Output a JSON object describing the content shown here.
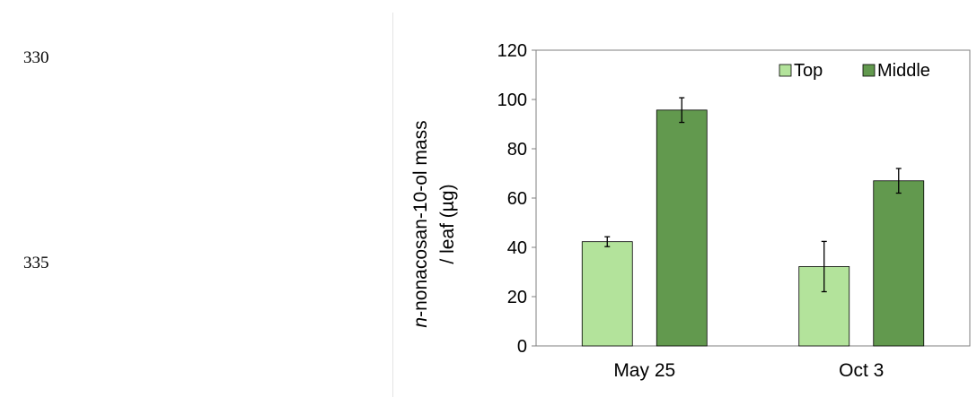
{
  "page": {
    "line_numbers": [
      "330",
      "335"
    ]
  },
  "chart_data": {
    "type": "bar",
    "categories": [
      "May 25",
      "Oct 3"
    ],
    "series": [
      {
        "name": "Top",
        "values": [
          42.3,
          32.2
        ],
        "errors": [
          2.0,
          10.2
        ],
        "color": "#b3e39b"
      },
      {
        "name": "Middle",
        "values": [
          95.7,
          67.0
        ],
        "errors": [
          5.0,
          5.0
        ],
        "color": "#62994e"
      }
    ],
    "title": "",
    "xlabel": "",
    "ylabel_line1_italic": "n",
    "ylabel_line1_rest": "-nonacosan-10-ol mass",
    "ylabel_line2": "/ leaf (µg)",
    "ylim": [
      0,
      120
    ],
    "yticks": [
      "0",
      "20",
      "40",
      "60",
      "80",
      "100",
      "120"
    ],
    "legend_position": "top-right",
    "grid": false
  }
}
